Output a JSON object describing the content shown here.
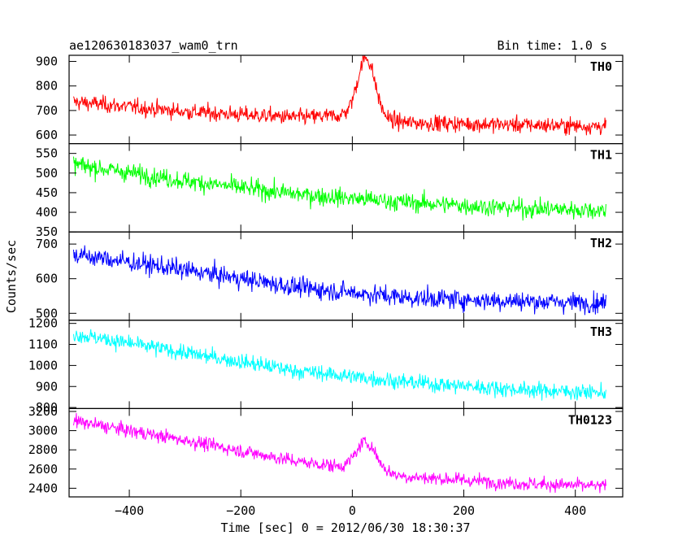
{
  "header": {
    "title": "ae120630183037_wam0_trn",
    "bin_time": "Bin time: 1.0 s"
  },
  "axes": {
    "xlabel": "Time [sec] 0 = 2012/06/30 18:30:37",
    "ylabel": "Counts/sec"
  },
  "chart_data": {
    "type": "line",
    "title": "ae120630183037_wam0_trn",
    "xlabel": "Time [sec] 0 = 2012/06/30 18:30:37",
    "ylabel": "Counts/sec",
    "x_range": [
      -500,
      455
    ],
    "xlim": [
      -508,
      485
    ],
    "x_ticks": [
      -400,
      -200,
      0,
      200,
      400
    ],
    "bin_time_s": 1.0,
    "panels": [
      {
        "name": "TH0",
        "color": "#ff0000",
        "ylim": [
          565,
          925
        ],
        "y_ticks": [
          600,
          700,
          800,
          900
        ],
        "trend": [
          [
            -500,
            735
          ],
          [
            -300,
            695
          ],
          [
            -100,
            672
          ],
          [
            -10,
            680
          ],
          [
            100,
            650
          ],
          [
            455,
            635
          ]
        ],
        "noise_amplitude": 28,
        "peak": {
          "x": 25,
          "y": 915,
          "width_s": 22
        }
      },
      {
        "name": "TH1",
        "color": "#00ff00",
        "ylim": [
          350,
          575
        ],
        "y_ticks": [
          350,
          400,
          450,
          500,
          550
        ],
        "trend": [
          [
            -500,
            522
          ],
          [
            -300,
            480
          ],
          [
            -100,
            446
          ],
          [
            100,
            425
          ],
          [
            300,
            410
          ],
          [
            455,
            405
          ]
        ],
        "noise_amplitude": 20
      },
      {
        "name": "TH2",
        "color": "#0000ff",
        "ylim": [
          480,
          735
        ],
        "y_ticks": [
          500,
          600,
          700
        ],
        "trend": [
          [
            -500,
            670
          ],
          [
            -300,
            625
          ],
          [
            -100,
            575
          ],
          [
            100,
            545
          ],
          [
            300,
            535
          ],
          [
            455,
            530
          ]
        ],
        "noise_amplitude": 24
      },
      {
        "name": "TH3",
        "color": "#00ffff",
        "ylim": [
          795,
          1215
        ],
        "y_ticks": [
          800,
          900,
          1000,
          1100,
          1200
        ],
        "trend": [
          [
            -500,
            1150
          ],
          [
            -300,
            1060
          ],
          [
            -100,
            975
          ],
          [
            100,
            920
          ],
          [
            300,
            885
          ],
          [
            455,
            870
          ]
        ],
        "noise_amplitude": 32
      },
      {
        "name": "TH0123",
        "color": "#ff00ff",
        "ylim": [
          2310,
          3230
        ],
        "y_ticks": [
          2400,
          2600,
          2800,
          3000,
          3200
        ],
        "trend": [
          [
            -500,
            3100
          ],
          [
            -300,
            2900
          ],
          [
            -100,
            2680
          ],
          [
            0,
            2610
          ],
          [
            100,
            2520
          ],
          [
            300,
            2450
          ],
          [
            455,
            2420
          ]
        ],
        "noise_amplitude": 60,
        "peak": {
          "x": 25,
          "y": 2880,
          "width_s": 25
        }
      }
    ]
  }
}
